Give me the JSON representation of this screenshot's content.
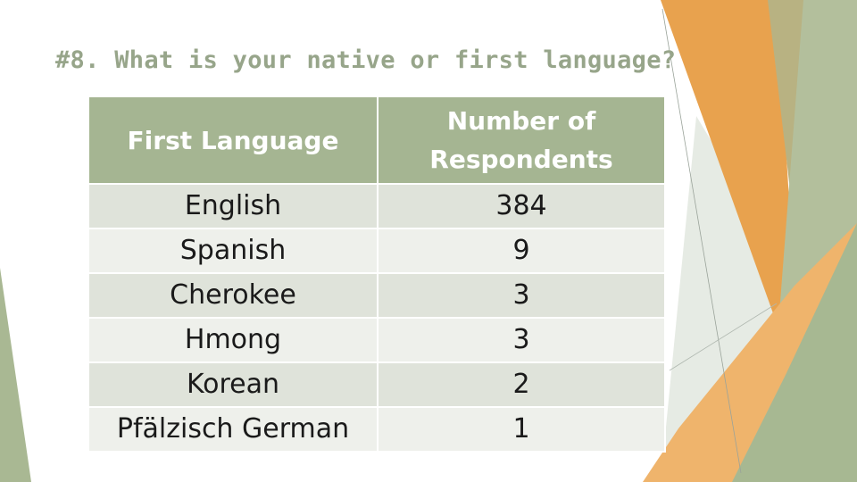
{
  "title": "#8. What is your native or first language?",
  "table": {
    "headers": [
      "First Language",
      "Number of Respondents"
    ],
    "rows": [
      {
        "language": "English",
        "count": "384"
      },
      {
        "language": "Spanish",
        "count": "9"
      },
      {
        "language": "Cherokee",
        "count": "3"
      },
      {
        "language": "Hmong",
        "count": "3"
      },
      {
        "language": "Korean",
        "count": "2"
      },
      {
        "language": "Pfälzisch German",
        "count": "1"
      }
    ]
  },
  "colors": {
    "header": "#a5b592",
    "title": "#97a58a",
    "accent_orange": "#e8a24e",
    "accent_green": "#a9b893"
  }
}
